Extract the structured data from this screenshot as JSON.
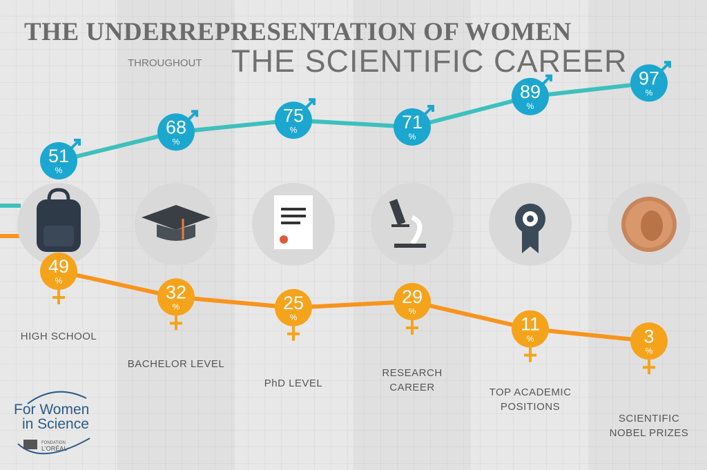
{
  "chart_data": {
    "type": "line",
    "title": "THE UNDERREPRESENTATION OF WOMEN",
    "subtitle_small": "THROUGHOUT",
    "subtitle": "THE SCIENTIFIC CAREER",
    "unit": "%",
    "categories": [
      "HIGH SCHOOL",
      "BACHELOR LEVEL",
      "PhD LEVEL",
      "RESEARCH CAREER",
      "TOP ACADEMIC POSITIONS",
      "SCIENTIFIC NOBEL PRIZES"
    ],
    "series": [
      {
        "name": "Men",
        "color": "#1ba7cf",
        "line_color": "#3ec0bd",
        "values": [
          51,
          68,
          75,
          71,
          89,
          97
        ]
      },
      {
        "name": "Women",
        "color": "#f6a31c",
        "line_color": "#f7941d",
        "values": [
          49,
          32,
          25,
          29,
          11,
          3
        ]
      }
    ],
    "logo": {
      "line1": "For Women",
      "line2": "in Science",
      "foundation": "FONDATION",
      "brand": "L'ORÉAL"
    }
  }
}
